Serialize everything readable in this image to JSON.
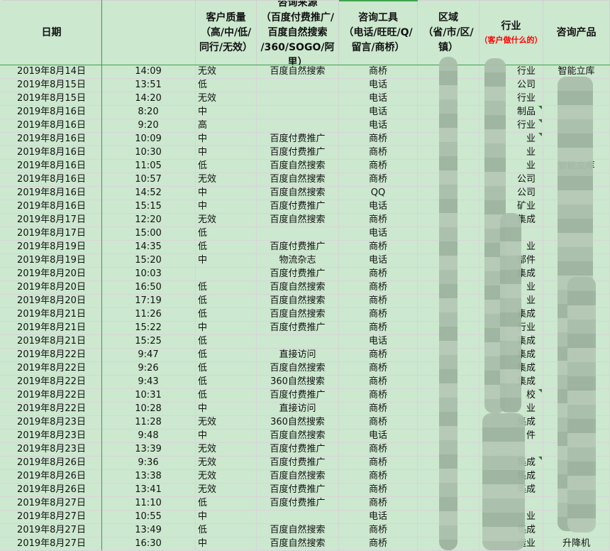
{
  "headers": [
    {
      "lines": [
        "日期"
      ]
    },
    {
      "lines": [
        ""
      ]
    },
    {
      "lines": [
        "客户质量",
        "（高/中/低/",
        "同行/无效）"
      ]
    },
    {
      "lines": [
        "咨询来源",
        "（百度付费推广/",
        "百度自然搜索",
        "/360/SOGO/阿",
        "里）"
      ]
    },
    {
      "lines": [
        "咨询工具",
        "（电话/旺旺/Q/",
        "留言/商桥）"
      ]
    },
    {
      "lines": [
        "区域",
        "（省/市/区/",
        "镇）"
      ]
    },
    {
      "lines": [
        "行业"
      ],
      "note": "（客户做什么的）"
    },
    {
      "lines": [
        "咨询产品"
      ]
    }
  ],
  "colors": {
    "background": "#cce8cf",
    "accent_green": "#3fa34d",
    "note_red": "#ff0000"
  },
  "rows": [
    {
      "date": "2019年8月14日",
      "time": "14:09",
      "quality": "无效",
      "source": "百度自然搜索",
      "tool": "商桥",
      "industry": "行业",
      "product": "智能立库"
    },
    {
      "date": "2019年8月15日",
      "time": "13:51",
      "quality": "低",
      "source": "",
      "tool": "电话",
      "industry": "公司",
      "product": ""
    },
    {
      "date": "2019年8月15日",
      "time": "14:20",
      "quality": "无效",
      "source": "",
      "tool": "电话",
      "industry": "行业",
      "product": ""
    },
    {
      "date": "2019年8月16日",
      "time": "8:20",
      "quality": "中",
      "source": "",
      "tool": "电话",
      "industry": "制品",
      "product": "",
      "flag": true
    },
    {
      "date": "2019年8月16日",
      "time": "9:20",
      "quality": "高",
      "source": "",
      "tool": "电话",
      "industry": "行业",
      "product": "",
      "flag": true
    },
    {
      "date": "2019年8月16日",
      "time": "10:09",
      "quality": "中",
      "source": "百度付费推广",
      "tool": "商桥",
      "industry": "业",
      "product": "",
      "flag": true
    },
    {
      "date": "2019年8月16日",
      "time": "10:30",
      "quality": "中",
      "source": "百度付费推广",
      "tool": "商桥",
      "industry": "业",
      "product": ""
    },
    {
      "date": "2019年8月16日",
      "time": "11:05",
      "quality": "低",
      "source": "百度自然搜索",
      "tool": "商桥",
      "industry": "业",
      "product": "智能立库"
    },
    {
      "date": "2019年8月16日",
      "time": "10:57",
      "quality": "无效",
      "source": "百度自然搜索",
      "tool": "商桥",
      "industry": "公司",
      "product": ""
    },
    {
      "date": "2019年8月16日",
      "time": "14:52",
      "quality": "中",
      "source": "百度自然搜索",
      "tool": "QQ",
      "industry": "公司",
      "product": ""
    },
    {
      "date": "2019年8月16日",
      "time": "15:15",
      "quality": "中",
      "source": "百度付费推广",
      "tool": "电话",
      "industry": "矿业",
      "product": ""
    },
    {
      "date": "2019年8月17日",
      "time": "12:20",
      "quality": "无效",
      "source": "百度自然搜索",
      "tool": "商桥",
      "industry": "集成",
      "product": ""
    },
    {
      "date": "2019年8月17日",
      "time": "15:00",
      "quality": "低",
      "source": "",
      "tool": "电话",
      "industry": "",
      "product": ""
    },
    {
      "date": "2019年8月19日",
      "time": "14:35",
      "quality": "低",
      "source": "百度付费推广",
      "tool": "商桥",
      "industry": "业",
      "product": ""
    },
    {
      "date": "2019年8月19日",
      "time": "15:20",
      "quality": "中",
      "source": "物流杂志",
      "tool": "电话",
      "industry": "部件",
      "product": ""
    },
    {
      "date": "2019年8月20日",
      "time": "10:03",
      "quality": "",
      "source": "百度付费推广",
      "tool": "商桥",
      "industry": "集成",
      "product": ""
    },
    {
      "date": "2019年8月20日",
      "time": "16:50",
      "quality": "低",
      "source": "百度自然搜索",
      "tool": "商桥",
      "industry": "业",
      "product": ""
    },
    {
      "date": "2019年8月20日",
      "time": "17:19",
      "quality": "低",
      "source": "百度自然搜索",
      "tool": "商桥",
      "industry": "业",
      "product": ""
    },
    {
      "date": "2019年8月21日",
      "time": "11:26",
      "quality": "低",
      "source": "百度自然搜索",
      "tool": "商桥",
      "industry": "集成",
      "product": ""
    },
    {
      "date": "2019年8月21日",
      "time": "15:22",
      "quality": "中",
      "source": "百度付费推广",
      "tool": "商桥",
      "industry": "行业",
      "product": ""
    },
    {
      "date": "2019年8月21日",
      "time": "15:25",
      "quality": "低",
      "source": "",
      "tool": "电话",
      "industry": "集成",
      "product": ""
    },
    {
      "date": "2019年8月22日",
      "time": "9:47",
      "quality": "低",
      "source": "直接访问",
      "tool": "商桥",
      "industry": "集成",
      "product": ""
    },
    {
      "date": "2019年8月22日",
      "time": "9:26",
      "quality": "低",
      "source": "百度自然搜索",
      "tool": "商桥",
      "industry": "集成",
      "product": ""
    },
    {
      "date": "2019年8月22日",
      "time": "9:43",
      "quality": "低",
      "source": "360自然搜索",
      "tool": "商桥",
      "industry": "集成",
      "product": ""
    },
    {
      "date": "2019年8月22日",
      "time": "10:31",
      "quality": "低",
      "source": "百度付费推广",
      "tool": "商桥",
      "industry": "校",
      "product": "",
      "flag": true
    },
    {
      "date": "2019年8月22日",
      "time": "10:28",
      "quality": "中",
      "source": "直接访问",
      "tool": "商桥",
      "industry": "业",
      "product": ""
    },
    {
      "date": "2019年8月23日",
      "time": "11:28",
      "quality": "无效",
      "source": "360自然搜索",
      "tool": "商桥",
      "industry": "集成",
      "product": ""
    },
    {
      "date": "2019年8月23日",
      "time": "9:48",
      "quality": "中",
      "source": "百度自然搜索",
      "tool": "电话",
      "industry": "件",
      "product": ""
    },
    {
      "date": "2019年8月23日",
      "time": "13:39",
      "quality": "无效",
      "source": "百度付费推广",
      "tool": "商桥",
      "industry": "",
      "product": ""
    },
    {
      "date": "2019年8月26日",
      "time": "9:36",
      "quality": "无效",
      "source": "百度付费推广",
      "tool": "商桥",
      "industry": "集成",
      "product": "",
      "flag": true
    },
    {
      "date": "2019年8月26日",
      "time": "13:38",
      "quality": "无效",
      "source": "百度自然搜索",
      "tool": "商桥",
      "industry": "集成",
      "product": ""
    },
    {
      "date": "2019年8月26日",
      "time": "13:41",
      "quality": "无效",
      "source": "百度付费推广",
      "tool": "商桥",
      "industry": "集成",
      "product": ""
    },
    {
      "date": "2019年8月27日",
      "time": "11:10",
      "quality": "低",
      "source": "百度付费推广",
      "tool": "商桥",
      "industry": "",
      "product": ""
    },
    {
      "date": "2019年8月27日",
      "time": "10:55",
      "quality": "中",
      "source": "",
      "tool": "电话",
      "industry": "业",
      "product": ""
    },
    {
      "date": "2019年8月27日",
      "time": "13:49",
      "quality": "低",
      "source": "百度自然搜索",
      "tool": "商桥",
      "industry": "集成",
      "product": ""
    },
    {
      "date": "2019年8月27日",
      "time": "16:30",
      "quality": "中",
      "source": "百度自然搜索",
      "tool": "商桥",
      "industry": "造业",
      "product": "升降机"
    }
  ]
}
